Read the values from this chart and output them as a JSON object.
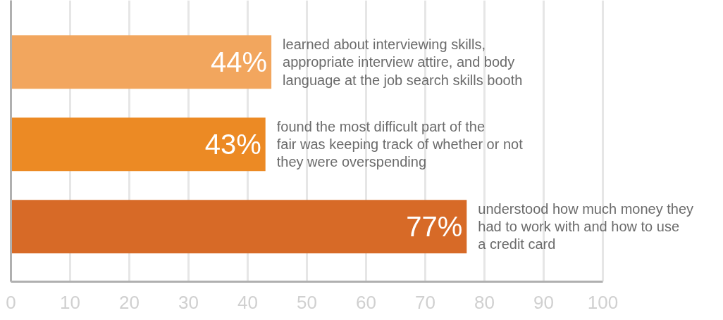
{
  "chart_data": {
    "type": "bar",
    "orientation": "horizontal",
    "categories": [
      null,
      null,
      null
    ],
    "values": [
      44,
      43,
      77
    ],
    "colors": [
      "#f2a65e",
      "#ec8a24",
      "#d76a27"
    ],
    "value_labels": [
      "44%",
      "43%",
      "77%"
    ],
    "annotations": [
      {
        "text": "learned about interviewing skills, appropriate interview attire, and body language at the job search skills booth",
        "x": 44
      },
      {
        "text": "found the most difficult part of the fair was keeping track of whether or not they were overspending",
        "x": 43
      },
      {
        "text": "understood how much money they had to work with and how to use a credit card",
        "x": 77
      }
    ],
    "xlim": [
      0,
      100
    ],
    "xticks": [
      0,
      10,
      20,
      30,
      40,
      50,
      60,
      70,
      80,
      90,
      100
    ],
    "grid": "x"
  }
}
